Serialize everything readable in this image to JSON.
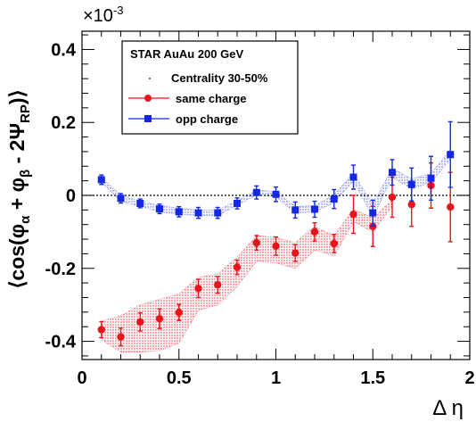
{
  "chart_data": {
    "type": "scatter",
    "exponent_label": "×10",
    "exponent_power": "-3",
    "ylabel": "⟨cos(φα + φβ - 2ΨRP)⟩",
    "ylabel_parts": {
      "open": "⟨cos(φ",
      "sub_a": "α",
      "mid": " + φ",
      "sub_b": "β",
      "tail": " - 2Ψ",
      "sub_rp": "RP",
      "close": ")⟩"
    },
    "xlabel": "Δ η",
    "xlim": [
      0,
      2
    ],
    "ylim": [
      -0.45,
      0.45
    ],
    "x_ticks": [
      {
        "value": 0,
        "label": "0"
      },
      {
        "value": 0.5,
        "label": "0.5"
      },
      {
        "value": 1,
        "label": "1"
      },
      {
        "value": 1.5,
        "label": "1.5"
      },
      {
        "value": 2,
        "label": "2"
      }
    ],
    "y_ticks": [
      {
        "value": -0.4,
        "label": "-0.4"
      },
      {
        "value": -0.2,
        "label": "-0.2"
      },
      {
        "value": 0,
        "label": "0"
      },
      {
        "value": 0.2,
        "label": "0.2"
      },
      {
        "value": 0.4,
        "label": "0.4"
      }
    ],
    "legend": {
      "title": "STAR   AuAu 200 GeV",
      "position": "top-left",
      "entries": [
        {
          "label": "Centrality 30-50%",
          "marker": "dot",
          "color": "#000000"
        },
        {
          "label": "same charge",
          "marker": "circle",
          "color": "#e8141c"
        },
        {
          "label": "opp charge",
          "marker": "square",
          "color": "#1428e0"
        }
      ]
    },
    "series": [
      {
        "name": "same charge",
        "color": "#e8141c",
        "marker": "circle",
        "x": [
          0.1,
          0.2,
          0.3,
          0.4,
          0.5,
          0.6,
          0.7,
          0.8,
          0.9,
          1.0,
          1.1,
          1.2,
          1.3,
          1.4,
          1.5,
          1.6,
          1.7,
          1.8,
          1.9
        ],
        "y": [
          -0.368,
          -0.388,
          -0.347,
          -0.338,
          -0.321,
          -0.255,
          -0.245,
          -0.197,
          -0.13,
          -0.139,
          -0.158,
          -0.1,
          -0.132,
          -0.052,
          -0.085,
          -0.005,
          -0.025,
          0.027,
          -0.032
        ],
        "err": [
          0.022,
          0.024,
          0.025,
          0.027,
          0.022,
          0.025,
          0.023,
          0.02,
          0.02,
          0.025,
          0.023,
          0.025,
          0.025,
          0.052,
          0.055,
          0.055,
          0.06,
          0.062,
          0.095
        ],
        "band_upper": [
          -0.345,
          -0.33,
          -0.3,
          -0.285,
          -0.27,
          -0.225,
          -0.215,
          -0.17,
          -0.11,
          -0.115,
          -0.13,
          -0.085,
          -0.11,
          -0.038,
          -0.062,
          -0.012,
          null,
          null,
          null
        ],
        "band_lower": [
          -0.395,
          -0.43,
          -0.43,
          -0.425,
          -0.405,
          -0.315,
          -0.3,
          -0.25,
          -0.18,
          -0.185,
          -0.2,
          -0.15,
          -0.165,
          -0.072,
          -0.1,
          -0.03,
          null,
          null,
          null
        ]
      },
      {
        "name": "opp charge",
        "color": "#1428e0",
        "marker": "square",
        "x": [
          0.1,
          0.2,
          0.3,
          0.4,
          0.5,
          0.6,
          0.7,
          0.8,
          0.9,
          1.0,
          1.1,
          1.2,
          1.3,
          1.4,
          1.5,
          1.6,
          1.7,
          1.8,
          1.9
        ],
        "y": [
          0.043,
          -0.008,
          -0.022,
          -0.037,
          -0.045,
          -0.048,
          -0.048,
          -0.022,
          0.008,
          0.003,
          -0.04,
          -0.038,
          -0.01,
          0.05,
          -0.048,
          0.063,
          0.03,
          0.047,
          0.112
        ],
        "err": [
          0.013,
          0.013,
          0.012,
          0.013,
          0.014,
          0.015,
          0.015,
          0.015,
          0.018,
          0.02,
          0.022,
          0.022,
          0.026,
          0.033,
          0.035,
          0.035,
          0.045,
          0.06,
          0.09
        ],
        "band_upper": [
          0.05,
          0.0,
          -0.015,
          -0.028,
          -0.035,
          -0.04,
          -0.04,
          -0.015,
          0.015,
          0.01,
          -0.03,
          -0.028,
          0.002,
          0.06,
          -0.025,
          0.075,
          0.045,
          0.06,
          0.125
        ],
        "band_lower": [
          0.036,
          -0.016,
          -0.03,
          -0.045,
          -0.052,
          -0.055,
          -0.055,
          -0.028,
          0.002,
          -0.004,
          -0.048,
          -0.045,
          -0.02,
          0.04,
          -0.06,
          0.05,
          0.018,
          0.035,
          0.1
        ]
      }
    ],
    "reference_line": {
      "y": 0,
      "style": "dotted"
    }
  }
}
